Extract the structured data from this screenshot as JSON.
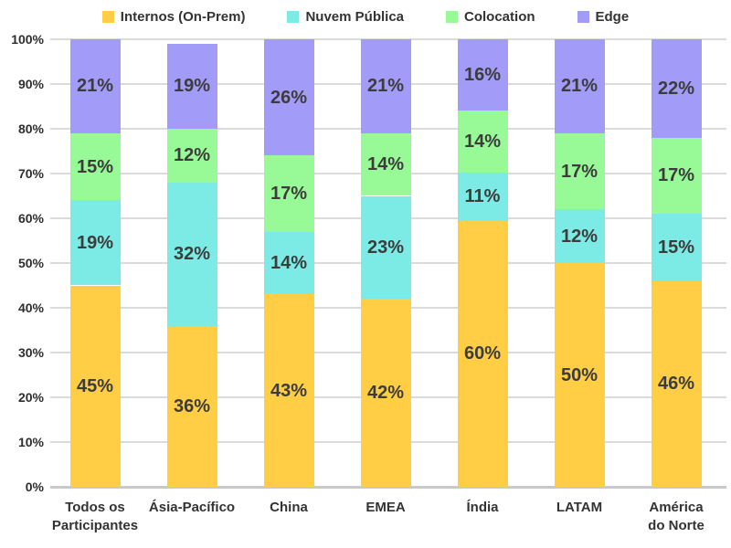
{
  "chart_data": {
    "type": "bar",
    "stacked": true,
    "percent_stacked": true,
    "title": "",
    "xlabel": "",
    "ylabel": "",
    "ylim": [
      0,
      100
    ],
    "y_ticks": [
      0,
      10,
      20,
      30,
      40,
      50,
      60,
      70,
      80,
      90,
      100
    ],
    "y_tick_suffix": "%",
    "value_suffix": "%",
    "grid": true,
    "legend_position": "top",
    "categories": [
      "Todos os\nParticipantes",
      "Ásia-Pacífico",
      "China",
      "EMEA",
      "Índia",
      "LATAM",
      "América\ndo Norte"
    ],
    "series": [
      {
        "name": "Internos (On-Prem)",
        "color": "#FFCE45",
        "values": [
          45,
          36,
          43,
          42,
          60,
          50,
          46
        ]
      },
      {
        "name": "Nuvem Pública",
        "color": "#7DEBE5",
        "values": [
          19,
          32,
          14,
          23,
          11,
          12,
          15
        ]
      },
      {
        "name": "Colocation",
        "color": "#98FA96",
        "values": [
          15,
          12,
          17,
          14,
          14,
          17,
          17
        ]
      },
      {
        "name": "Edge",
        "color": "#A29BF8",
        "values": [
          21,
          19,
          26,
          21,
          16,
          21,
          22
        ]
      }
    ],
    "column_totals_as_labeled": [
      100,
      99,
      100,
      100,
      101,
      100,
      100
    ]
  },
  "colors": {
    "background": "#ffffff",
    "gridline": "#dbdbdb",
    "axis_line": "#c9c9c9",
    "tick_text": "#2e2e2e",
    "label_text": "#3c3c3c"
  }
}
